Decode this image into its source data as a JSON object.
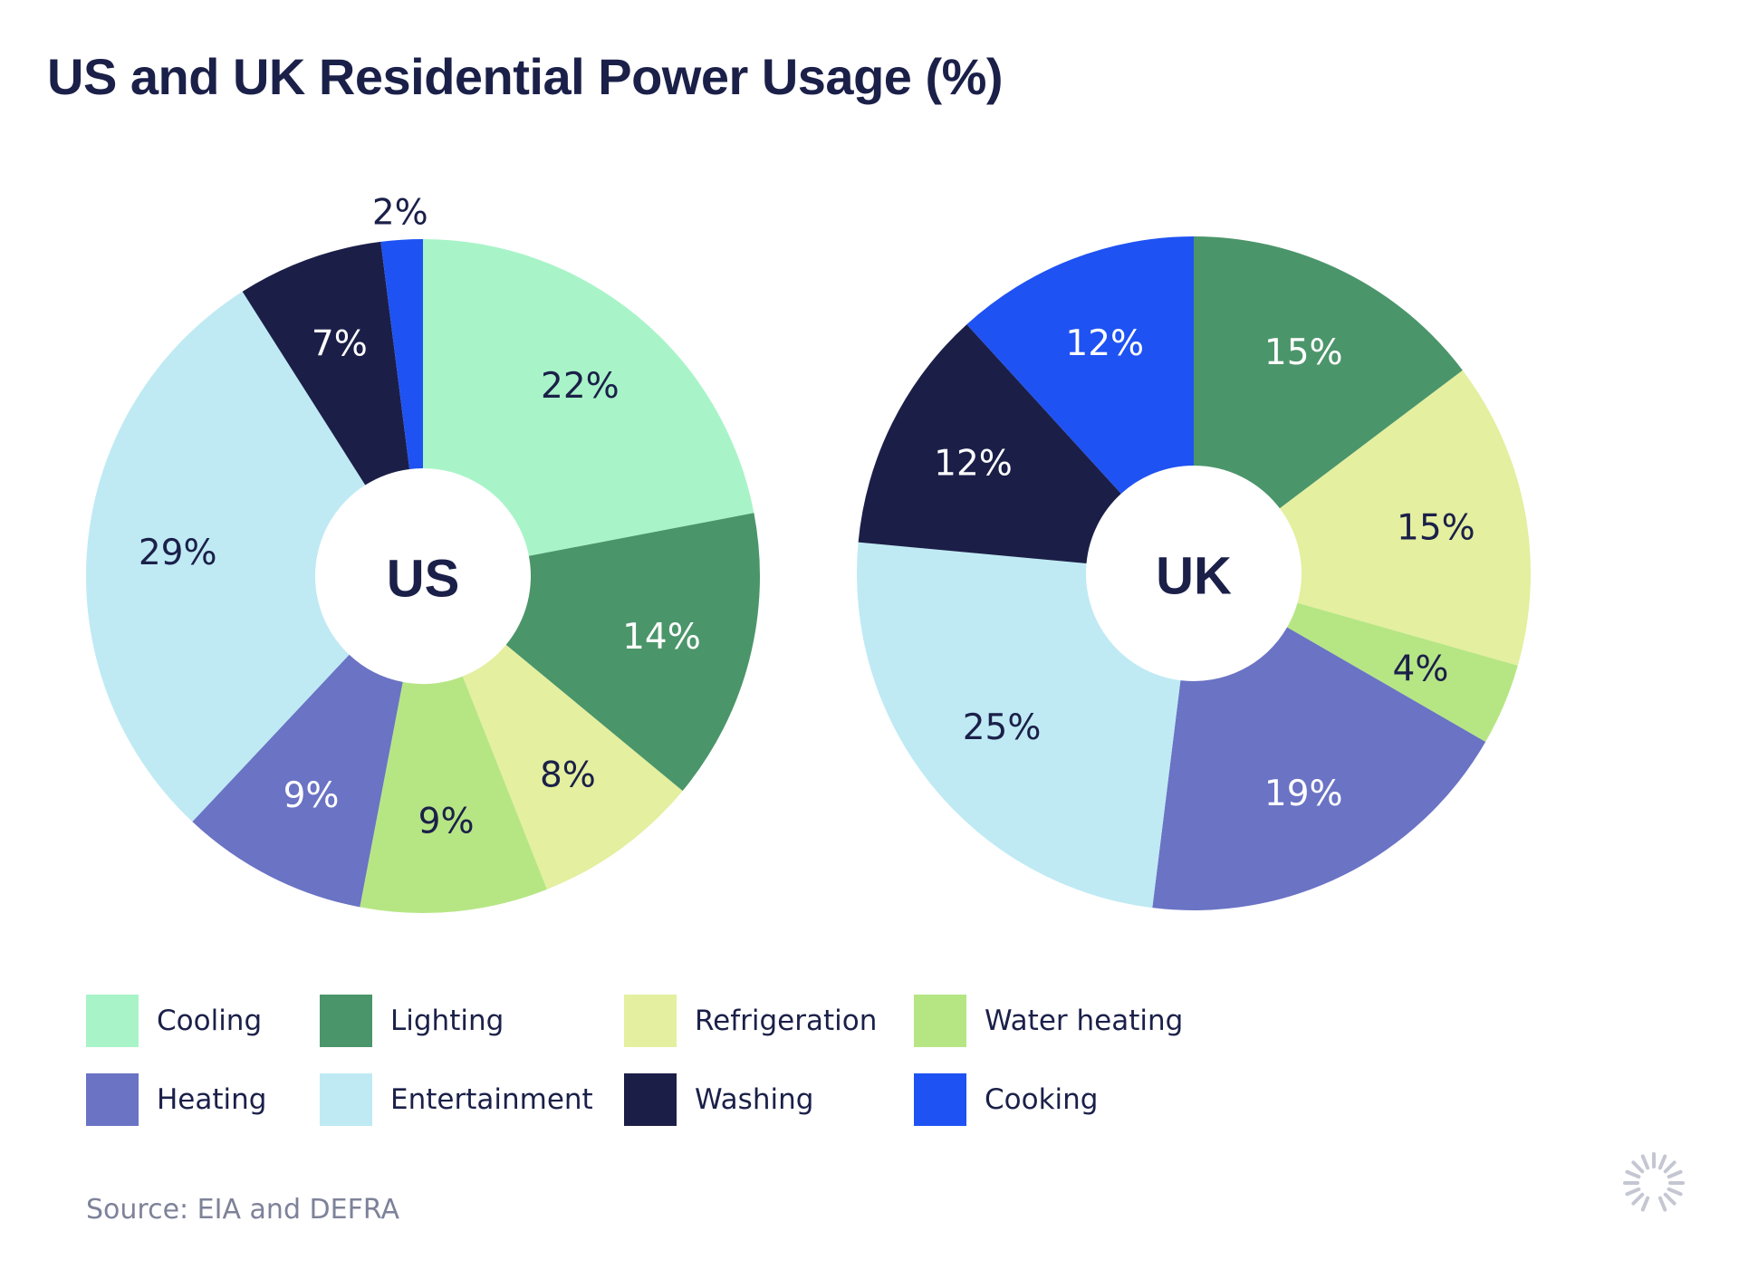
{
  "title": "US and UK Residential Power Usage (%)",
  "source": "Source: EIA and DEFRA",
  "legend": [
    {
      "label": "Cooling",
      "color": "#a8f4c8"
    },
    {
      "label": "Lighting",
      "color": "#4b956a"
    },
    {
      "label": "Refrigeration",
      "color": "#e4ef9f"
    },
    {
      "label": "Water heating",
      "color": "#b6e684"
    },
    {
      "label": "Heating",
      "color": "#6a73c4"
    },
    {
      "label": "Entertainment",
      "color": "#bfeaf4"
    },
    {
      "label": "Washing",
      "color": "#1b1f48"
    },
    {
      "label": "Cooking",
      "color": "#1f52f2"
    }
  ],
  "chart_data": [
    {
      "type": "pie",
      "center_label": "US",
      "slices": [
        {
          "category": "Cooling",
          "value": 22,
          "label": "22%",
          "color": "#a8f4c8",
          "text_color": "#1b2049"
        },
        {
          "category": "Lighting",
          "value": 14,
          "label": "14%",
          "color": "#4b956a",
          "text_color": "#ffffff"
        },
        {
          "category": "Refrigeration",
          "value": 8,
          "label": "8%",
          "color": "#e4ef9f",
          "text_color": "#1b2049"
        },
        {
          "category": "Water heating",
          "value": 9,
          "label": "9%",
          "color": "#b6e684",
          "text_color": "#1b2049"
        },
        {
          "category": "Heating",
          "value": 9,
          "label": "9%",
          "color": "#6a73c4",
          "text_color": "#ffffff"
        },
        {
          "category": "Entertainment",
          "value": 29,
          "label": "29%",
          "color": "#bfeaf4",
          "text_color": "#1b2049"
        },
        {
          "category": "Washing",
          "value": 7,
          "label": "7%",
          "color": "#1b1f48",
          "text_color": "#ffffff"
        },
        {
          "category": "Cooking",
          "value": 2,
          "label": "2%",
          "color": "#1f52f2",
          "text_color": "#1b2049"
        }
      ]
    },
    {
      "type": "pie",
      "center_label": "UK",
      "slices": [
        {
          "category": "Lighting",
          "value": 15,
          "label": "15%",
          "color": "#4b956a",
          "text_color": "#ffffff"
        },
        {
          "category": "Refrigeration",
          "value": 15,
          "label": "15%",
          "color": "#e4ef9f",
          "text_color": "#1b2049"
        },
        {
          "category": "Water heating",
          "value": 4,
          "label": "4%",
          "color": "#b6e684",
          "text_color": "#1b2049"
        },
        {
          "category": "Heating",
          "value": 19,
          "label": "19%",
          "color": "#6a73c4",
          "text_color": "#ffffff"
        },
        {
          "category": "Entertainment",
          "value": 25,
          "label": "25%",
          "color": "#bfeaf4",
          "text_color": "#1b2049"
        },
        {
          "category": "Washing",
          "value": 12,
          "label": "12%",
          "color": "#1b1f48",
          "text_color": "#ffffff"
        },
        {
          "category": "Cooking",
          "value": 12,
          "label": "12%",
          "color": "#1f52f2",
          "text_color": "#ffffff"
        }
      ]
    }
  ]
}
